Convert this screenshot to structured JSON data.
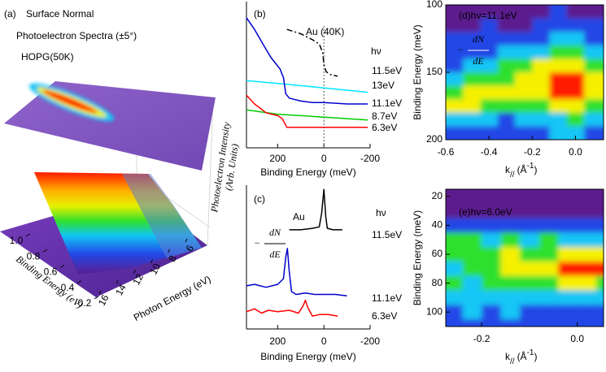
{
  "chart_data": [
    {
      "type": "surface3d",
      "label": "(a)",
      "title": [
        "Surface Normal",
        "Photoelectron Spectra (±5°)",
        "HOPG(50K)"
      ],
      "xlabel": "Binding Energy (eV)",
      "xlim": [
        1,
        0.2
      ],
      "xticks": [
        {
          "value": 1,
          "label": "1.0"
        },
        0.8,
        0.6,
        0.4,
        0.2
      ],
      "ylabel": "Photon Energy (eV)",
      "ylim": [
        16,
        6
      ],
      "yticks": [
        16,
        14,
        12,
        10,
        8,
        6
      ],
      "zlabel": [
        "Photoelectron Intensity",
        "(Arb. Units)"
      ]
    },
    {
      "type": "line",
      "label": "(b)",
      "xlabel": "Binding Energy (meV)",
      "xlim": [
        335,
        -200
      ],
      "xticks": [
        200,
        0,
        -200
      ],
      "ylim": [
        0,
        100
      ],
      "vline": 0,
      "annotation": "Au (40K)",
      "legend_title": "hν",
      "series": [
        {
          "name": "11.5eV",
          "color": "#000000",
          "style": "dashdot",
          "x": [
            160,
            100,
            50,
            20,
            5,
            0,
            -10,
            -30,
            -60
          ],
          "values": [
            81,
            78,
            74,
            71,
            65,
            57,
            52,
            50,
            49
          ]
        },
        {
          "name": "13eV",
          "color": "#00e5ff",
          "style": "solid",
          "x": [
            335,
            200,
            0,
            -190
          ],
          "values": [
            46,
            44,
            41,
            38
          ]
        },
        {
          "name": "11.1eV",
          "color": "#0000cc",
          "style": "solid",
          "x": [
            335,
            300,
            260,
            230,
            210,
            190,
            175,
            165,
            150,
            100,
            50,
            0,
            -100,
            -190
          ],
          "values": [
            89,
            81,
            70,
            62,
            58,
            54,
            48,
            37,
            34,
            32,
            31,
            31,
            30,
            30
          ]
        },
        {
          "name": "8.7eV",
          "color": "#00cc00",
          "style": "solid",
          "x": [
            335,
            200,
            0,
            -190
          ],
          "values": [
            26,
            23,
            21,
            19
          ]
        },
        {
          "name": "6.3eV",
          "color": "#ff0000",
          "style": "solid",
          "x": [
            335,
            300,
            250,
            200,
            180,
            160,
            100,
            0,
            -190
          ],
          "values": [
            36,
            30,
            24,
            22,
            20,
            14,
            14,
            14,
            14
          ]
        }
      ]
    },
    {
      "type": "line",
      "label": "(c)",
      "xlabel": "Binding Energy (meV)",
      "xlim": [
        335,
        -200
      ],
      "xticks": [
        200,
        0,
        -200
      ],
      "ylim": [
        0,
        100
      ],
      "annotation": "Au",
      "legend_title": "hν",
      "derivative": [
        "−",
        "dN",
        "dE"
      ],
      "series": [
        {
          "name": "11.5eV",
          "color": "#000000",
          "style": "solid",
          "x": [
            150,
            100,
            50,
            20,
            10,
            0,
            -8,
            -15,
            -40,
            -80
          ],
          "values": [
            69,
            69,
            70,
            71,
            80,
            97,
            78,
            70,
            69,
            69
          ]
        },
        {
          "name": "11.1eV",
          "color": "#0000cc",
          "style": "solid",
          "x": [
            335,
            300,
            250,
            200,
            175,
            165,
            158,
            150,
            140,
            120,
            80,
            40,
            0,
            -50,
            -100
          ],
          "values": [
            30,
            31,
            29,
            31,
            35,
            50,
            56,
            40,
            26,
            24,
            25,
            24,
            24,
            24,
            23
          ]
        },
        {
          "name": "6.3eV",
          "color": "#ff0000",
          "style": "solid",
          "x": [
            335,
            300,
            270,
            240,
            200,
            150,
            110,
            90,
            80,
            70,
            50,
            20,
            -20,
            -60
          ],
          "values": [
            12,
            14,
            11,
            13,
            12,
            13,
            11,
            16,
            20,
            15,
            9,
            10,
            10,
            9
          ]
        }
      ]
    },
    {
      "type": "heatmap",
      "title": "(d)hν=11.1eV",
      "derivative": [
        "−",
        "dN",
        "dE"
      ],
      "ylabel": "Binding Energy (meV)",
      "xlabel": [
        "k",
        "//",
        "(Å",
        "-1",
        ")"
      ],
      "xlim": [
        -0.6,
        0.13
      ],
      "xticks": [
        -0.6,
        -0.4,
        -0.2,
        {
          "value": 0,
          "label": "0.0"
        }
      ],
      "ylim": [
        200,
        100
      ],
      "yticks": [
        100,
        150,
        200
      ],
      "zlim": [
        0,
        5
      ],
      "colormap": [
        "#5b1e8e",
        "#2247e6",
        "#12c6f5",
        "#2ee02e",
        "#f5f000",
        "#ff1a00"
      ],
      "x": [
        -0.56,
        -0.48,
        -0.4,
        -0.32,
        -0.24,
        -0.16,
        -0.08,
        0,
        0.08
      ],
      "y": [
        105,
        115,
        125,
        135,
        145,
        155,
        165,
        175,
        185,
        195
      ],
      "z": [
        [
          0,
          0,
          0,
          0,
          0,
          0,
          1,
          0,
          0
        ],
        [
          0,
          0,
          1,
          0,
          0,
          1,
          1,
          1,
          1
        ],
        [
          1,
          1,
          1,
          1,
          1,
          1,
          2,
          2,
          1
        ],
        [
          1,
          1,
          1,
          2,
          2,
          2,
          3,
          3,
          2
        ],
        [
          1,
          2,
          2,
          3,
          3,
          4,
          4,
          4,
          3
        ],
        [
          2,
          3,
          3,
          3,
          4,
          4,
          5,
          5,
          4
        ],
        [
          3,
          4,
          4,
          4,
          4,
          4,
          5,
          5,
          4
        ],
        [
          4,
          4,
          3,
          3,
          3,
          3,
          4,
          4,
          3
        ],
        [
          2,
          2,
          2,
          1,
          2,
          2,
          2,
          3,
          2
        ],
        [
          1,
          1,
          1,
          1,
          1,
          1,
          2,
          2,
          1
        ]
      ]
    },
    {
      "type": "heatmap",
      "title": "(e)hν=6.0eV",
      "ylabel": "Binding Energy (meV)",
      "xlabel": [
        "k",
        "//",
        "(Å",
        "-1",
        ")"
      ],
      "xlim": [
        -0.275,
        0.055
      ],
      "xticks": [
        -0.2,
        {
          "value": 0,
          "label": "0.0"
        }
      ],
      "ylim": [
        110,
        15
      ],
      "yticks": [
        20,
        40,
        60,
        80,
        100
      ],
      "zlim": [
        0,
        5
      ],
      "colormap": [
        "#5b1e8e",
        "#2247e6",
        "#12c6f5",
        "#2ee02e",
        "#f5f000",
        "#ff1a00"
      ],
      "x": [
        -0.26,
        -0.22,
        -0.18,
        -0.14,
        -0.1,
        -0.06,
        -0.02,
        0.02,
        0.06
      ],
      "y": [
        20,
        30,
        40,
        50,
        60,
        70,
        80,
        90,
        100,
        110
      ],
      "z": [
        [
          0,
          0,
          0,
          0,
          0,
          0,
          0,
          0,
          0
        ],
        [
          0,
          0,
          0,
          0,
          0,
          0,
          0,
          0,
          0
        ],
        [
          1,
          1,
          1,
          1,
          1,
          1,
          1,
          1,
          1
        ],
        [
          3,
          3,
          2,
          3,
          2,
          3,
          2,
          2,
          2
        ],
        [
          3,
          3,
          3,
          4,
          3,
          3,
          4,
          4,
          4
        ],
        [
          2,
          3,
          3,
          4,
          4,
          4,
          5,
          5,
          5
        ],
        [
          3,
          2,
          3,
          3,
          3,
          3,
          4,
          4,
          3
        ],
        [
          2,
          2,
          2,
          2,
          2,
          2,
          2,
          2,
          2
        ],
        [
          1,
          2,
          1,
          2,
          1,
          1,
          1,
          1,
          1
        ],
        [
          1,
          1,
          1,
          1,
          1,
          1,
          1,
          1,
          1
        ]
      ]
    }
  ]
}
